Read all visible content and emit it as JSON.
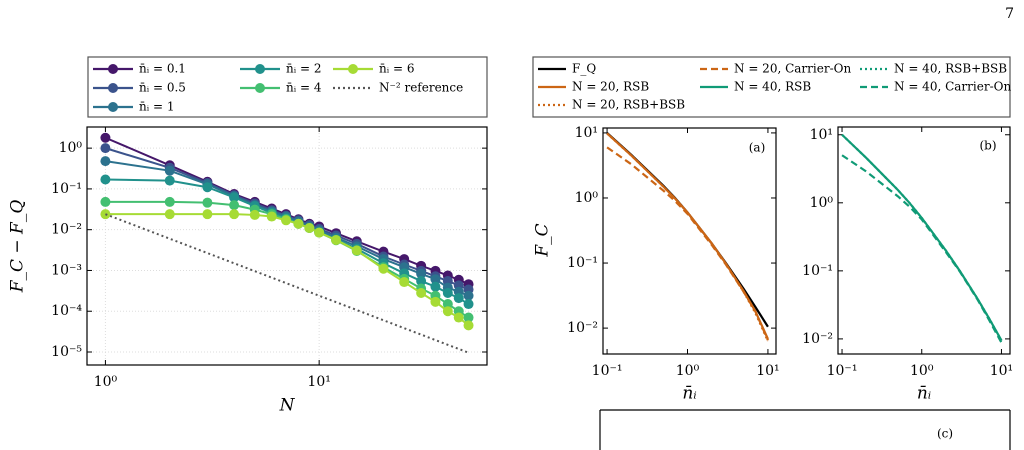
{
  "page_number": "7",
  "chart_data": [
    {
      "type": "line",
      "xlabel": "N",
      "ylabel": "F_C − F_Q",
      "xscale": "log",
      "yscale": "log",
      "grid": true,
      "legend": "above",
      "x": [
        1,
        2,
        3,
        4,
        5,
        6,
        7,
        8,
        9,
        10,
        12,
        15,
        20,
        25,
        30,
        35,
        40,
        45,
        50
      ],
      "xlim": [
        0.82,
        61
      ],
      "ylim": [
        4.8e-06,
        3.3
      ],
      "xticks": [
        {
          "value": 1,
          "label": "10⁰"
        },
        {
          "value": 10,
          "label": "10¹"
        }
      ],
      "yticks": [
        {
          "value": 1,
          "label": "10⁰"
        },
        {
          "value": 0.1,
          "label": "10⁻¹"
        },
        {
          "value": 0.01,
          "label": "10⁻²"
        },
        {
          "value": 0.001,
          "label": "10⁻³"
        },
        {
          "value": 0.0001,
          "label": "10⁻⁴"
        },
        {
          "value": 1e-05,
          "label": "10⁻⁵"
        }
      ],
      "series": [
        {
          "name": "n̄ᵢ = 0.1",
          "color": "#45176a",
          "linestyle": "solid",
          "marker": true,
          "values": [
            1.8,
            0.38,
            0.15,
            0.075,
            0.048,
            0.033,
            0.024,
            0.018,
            0.014,
            0.012,
            0.0082,
            0.0052,
            0.0029,
            0.0019,
            0.0013,
            0.00098,
            0.00075,
            0.00059,
            0.00046
          ]
        },
        {
          "name": "n̄ᵢ = 0.5",
          "color": "#3b538c",
          "linestyle": "solid",
          "marker": true,
          "values": [
            1.0,
            0.33,
            0.14,
            0.07,
            0.044,
            0.03,
            0.022,
            0.017,
            0.013,
            0.0105,
            0.0072,
            0.0045,
            0.0022,
            0.0014,
            0.00098,
            0.00072,
            0.00055,
            0.00043,
            0.00034
          ]
        },
        {
          "name": "n̄ᵢ = 1",
          "color": "#2c728e",
          "linestyle": "solid",
          "marker": true,
          "values": [
            0.48,
            0.28,
            0.13,
            0.066,
            0.04,
            0.028,
            0.021,
            0.016,
            0.012,
            0.0096,
            0.0064,
            0.0039,
            0.0019,
            0.0012,
            0.00083,
            0.00061,
            0.00038,
            0.0003,
            0.00024
          ]
        },
        {
          "name": "n̄ᵢ = 2",
          "color": "#21918c",
          "linestyle": "solid",
          "marker": true,
          "values": [
            0.17,
            0.16,
            0.11,
            0.062,
            0.038,
            0.026,
            0.019,
            0.014,
            0.011,
            0.0088,
            0.0058,
            0.0034,
            0.0015,
            0.00085,
            0.00055,
            0.0004,
            0.00028,
            0.00021,
            0.00015
          ]
        },
        {
          "name": "n̄ᵢ = 4",
          "color": "#43bf71",
          "linestyle": "solid",
          "marker": true,
          "values": [
            0.048,
            0.048,
            0.046,
            0.04,
            0.031,
            0.024,
            0.018,
            0.014,
            0.011,
            0.0085,
            0.0055,
            0.003,
            0.0012,
            0.00062,
            0.00036,
            0.00024,
            0.00015,
            0.0001,
            7e-05
          ]
        },
        {
          "name": "n̄ᵢ = 6",
          "color": "#a6db35",
          "linestyle": "solid",
          "marker": true,
          "values": [
            0.024,
            0.024,
            0.024,
            0.024,
            0.023,
            0.021,
            0.017,
            0.014,
            0.011,
            0.0085,
            0.0056,
            0.0031,
            0.0011,
            0.00052,
            0.00028,
            0.00017,
            0.0001,
            7e-05,
            4.5e-05
          ]
        },
        {
          "name": "N⁻² reference",
          "color": "#555555",
          "linestyle": "dotted",
          "marker": false,
          "values": [
            0.024,
            0.006,
            0.00267,
            0.0015,
            0.00096,
            0.000667,
            0.00049,
            0.000375,
            0.000296,
            0.00024,
            0.000167,
            0.000107,
            6e-05,
            3.84e-05,
            2.67e-05,
            1.96e-05,
            1.5e-05,
            1.19e-05,
            9.6e-06
          ]
        }
      ]
    },
    {
      "type": "line",
      "panel_label": "(a)",
      "xlabel": "n̄ᵢ",
      "ylabel": "F_C",
      "xscale": "log",
      "yscale": "log",
      "grid": false,
      "legend": "above",
      "x": [
        0.1,
        0.2,
        0.5,
        0.7,
        1,
        2,
        3,
        5,
        7,
        10
      ],
      "xlim": [
        0.089,
        12.6
      ],
      "ylim": [
        0.004,
        11.9
      ],
      "xticks": [
        {
          "value": 0.1,
          "label": "10⁻¹"
        },
        {
          "value": 1,
          "label": "10⁰"
        },
        {
          "value": 10,
          "label": "10¹"
        }
      ],
      "yticks": [
        {
          "value": 10,
          "label": "10¹"
        },
        {
          "value": 1,
          "label": "10⁰"
        },
        {
          "value": 0.1,
          "label": "10⁻¹"
        },
        {
          "value": 0.01,
          "label": "10⁻²"
        }
      ],
      "series": [
        {
          "name": "F_Q",
          "color": "#000000",
          "linestyle": "solid",
          "values": [
            10,
            4.6,
            1.55,
            1.0,
            0.6,
            0.2,
            0.1,
            0.04,
            0.021,
            0.0105
          ]
        },
        {
          "name": "N = 20, RSB",
          "color": "#cc6615",
          "linestyle": "solid",
          "values": [
            9.8,
            4.5,
            1.5,
            0.98,
            0.6,
            0.2,
            0.098,
            0.037,
            0.018,
            0.0068
          ]
        },
        {
          "name": "N = 20, RSB+BSB",
          "color": "#cc6615",
          "linestyle": "dotted",
          "values": [
            9.8,
            4.5,
            1.5,
            0.98,
            0.6,
            0.2,
            0.097,
            0.036,
            0.017,
            0.0063
          ]
        },
        {
          "name": "N = 20, Carrier-On",
          "color": "#cc6615",
          "linestyle": "dashed",
          "values": [
            6.0,
            3.3,
            1.3,
            0.9,
            0.57,
            0.19,
            0.095,
            0.036,
            0.018,
            0.0065
          ]
        }
      ]
    },
    {
      "type": "line",
      "panel_label": "(b)",
      "xlabel": "n̄ᵢ",
      "xscale": "log",
      "yscale": "log",
      "grid": false,
      "legend": "above",
      "x": [
        0.1,
        0.2,
        0.5,
        0.7,
        1,
        2,
        3,
        5,
        7,
        10
      ],
      "xlim": [
        0.089,
        12.8
      ],
      "ylim": [
        0.006,
        13
      ],
      "xticks": [
        {
          "value": 0.1,
          "label": "10⁻¹"
        },
        {
          "value": 1,
          "label": "10⁰"
        },
        {
          "value": 10,
          "label": "10¹"
        }
      ],
      "yticks": [
        {
          "value": 10,
          "label": "10¹"
        },
        {
          "value": 1,
          "label": "10⁰"
        },
        {
          "value": 0.1,
          "label": "10⁻¹"
        },
        {
          "value": 0.01,
          "label": "10⁻²"
        }
      ],
      "series": [
        {
          "name": "N = 40, RSB",
          "color": "#109b76",
          "linestyle": "solid",
          "values": [
            10,
            4.6,
            1.55,
            1.0,
            0.6,
            0.2,
            0.1,
            0.039,
            0.02,
            0.0095
          ]
        },
        {
          "name": "N = 40, RSB+BSB",
          "color": "#109b76",
          "linestyle": "dotted",
          "values": [
            10,
            4.6,
            1.55,
            1.0,
            0.6,
            0.2,
            0.1,
            0.039,
            0.02,
            0.0094
          ]
        },
        {
          "name": "N = 40, Carrier-On",
          "color": "#109b76",
          "linestyle": "dashed",
          "values": [
            5.0,
            2.9,
            1.25,
            0.88,
            0.57,
            0.19,
            0.098,
            0.038,
            0.019,
            0.0088
          ]
        }
      ]
    },
    {
      "type": "line",
      "panel_label": "(c)"
    }
  ]
}
